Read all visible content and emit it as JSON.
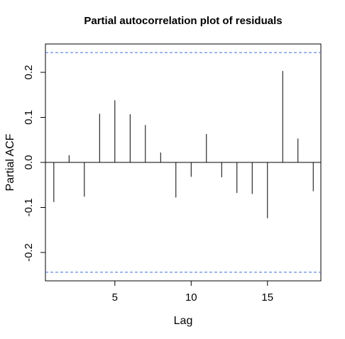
{
  "chart_data": {
    "type": "bar",
    "title": "Partial autocorrelation plot of residuals",
    "xlabel": "Lag",
    "ylabel": "Partial ACF",
    "xlim": [
      0.45,
      18.5
    ],
    "ylim": [
      -0.263,
      0.263
    ],
    "x_ticks": [
      5,
      10,
      15
    ],
    "x_tick_labels": [
      "5",
      "10",
      "15"
    ],
    "y_ticks": [
      -0.2,
      -0.1,
      0.0,
      0.1,
      0.2
    ],
    "y_tick_labels": [
      "-0.2",
      "-0.1",
      "0.0",
      "0.1",
      "0.2"
    ],
    "lags": [
      1,
      2,
      3,
      4,
      5,
      6,
      7,
      8,
      9,
      10,
      11,
      12,
      13,
      14,
      15,
      16,
      17,
      18
    ],
    "values": [
      -0.088,
      0.016,
      -0.076,
      0.108,
      0.138,
      0.107,
      0.083,
      0.022,
      -0.078,
      -0.032,
      0.063,
      -0.033,
      -0.068,
      -0.07,
      -0.124,
      0.203,
      0.053,
      -0.064
    ],
    "confidence_bound": 0.244,
    "bound_color": "#3c6cd6",
    "bar_color": "#000000",
    "grid": false
  }
}
